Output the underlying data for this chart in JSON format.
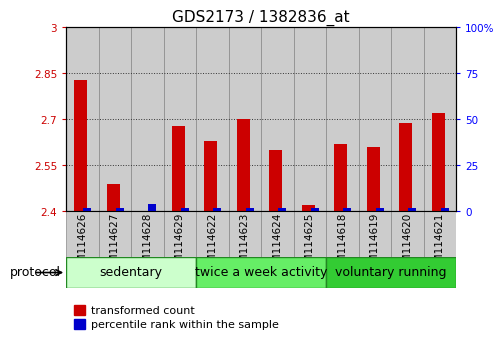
{
  "title": "GDS2173 / 1382836_at",
  "categories": [
    "GSM114626",
    "GSM114627",
    "GSM114628",
    "GSM114629",
    "GSM114622",
    "GSM114623",
    "GSM114624",
    "GSM114625",
    "GSM114618",
    "GSM114619",
    "GSM114620",
    "GSM114621"
  ],
  "red_values": [
    2.83,
    2.49,
    2.4,
    2.68,
    2.63,
    2.7,
    2.6,
    2.42,
    2.62,
    2.61,
    2.69,
    2.72
  ],
  "blue_values": [
    2,
    2,
    4,
    2,
    2,
    2,
    2,
    2,
    2,
    2,
    2,
    2
  ],
  "ylim_left": [
    2.4,
    3.0
  ],
  "ylim_right": [
    0,
    100
  ],
  "yticks_left": [
    2.4,
    2.55,
    2.7,
    2.85,
    3.0
  ],
  "yticks_right": [
    0,
    25,
    50,
    75,
    100
  ],
  "ytick_labels_left": [
    "2.4",
    "2.55",
    "2.7",
    "2.85",
    "3"
  ],
  "ytick_labels_right": [
    "0",
    "25",
    "50",
    "75",
    "100%"
  ],
  "groups": [
    {
      "label": "sedentary",
      "indices": [
        0,
        1,
        2,
        3
      ],
      "color": "#ccffcc"
    },
    {
      "label": "twice a week activity",
      "indices": [
        4,
        5,
        6,
        7
      ],
      "color": "#66ee66"
    },
    {
      "label": "voluntary running",
      "indices": [
        8,
        9,
        10,
        11
      ],
      "color": "#33cc33"
    }
  ],
  "group_border_color": "#228822",
  "col_bg_color": "#cccccc",
  "col_border_color": "#888888",
  "red_color": "#cc0000",
  "blue_color": "#0000cc",
  "red_bar_width": 0.4,
  "blue_bar_width": 0.25,
  "legend_red": "transformed count",
  "legend_blue": "percentile rank within the sample",
  "protocol_label": "protocol",
  "grid_color": "#333333",
  "title_fontsize": 11,
  "tick_fontsize": 7.5,
  "label_fontsize": 9,
  "group_label_fontsize": 9,
  "legend_fontsize": 8
}
